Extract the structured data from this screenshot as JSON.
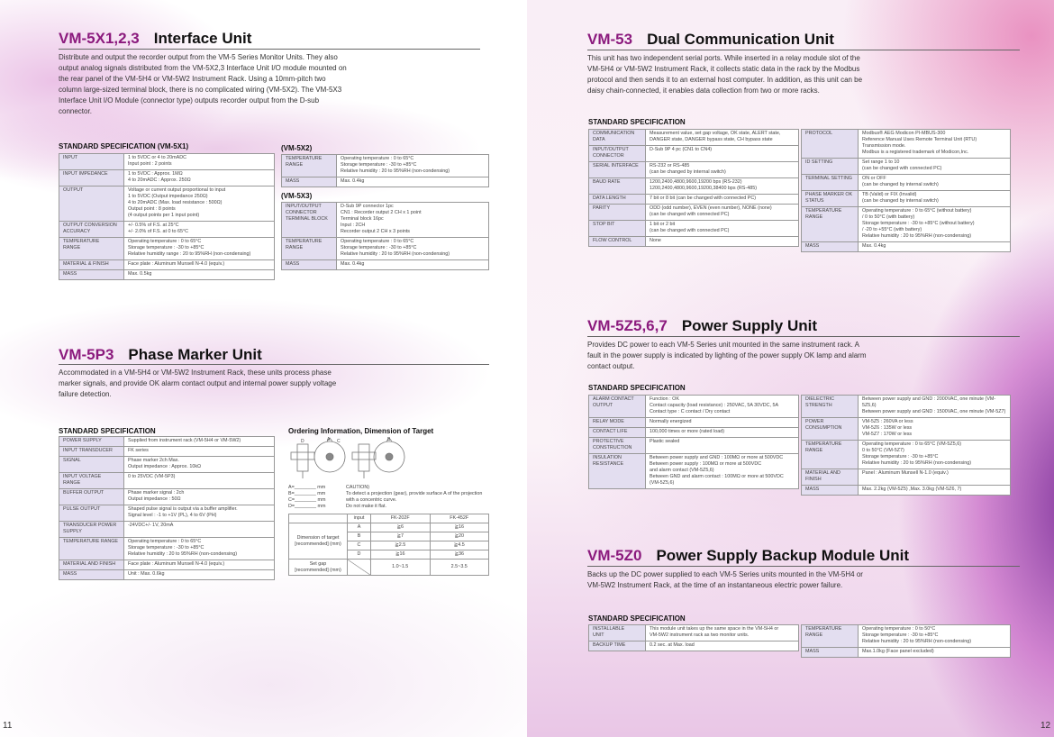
{
  "left_page": {
    "page_number": "11",
    "vm5x": {
      "model": "VM-5X1,2,3",
      "title": "Interface Unit",
      "description": "Distribute and output the recorder output from the VM-5 Series Monitor Units. They also output analog signals distributed from the VM-5X2,3 Interface Unit I/O module mounted on the rear panel of the VM-5H4 or VM-5W2 Instrument Rack. Using a 10mm-pitch two column large-sized terminal block, there is no complicated wiring (VM-5X2). The VM-5X3 Interface Unit I/O Module (connector type) outputs recorder output from the D-sub connector.",
      "spec_x1_heading": "STANDARD SPECIFICATION (VM-5X1)",
      "spec_x1": [
        [
          "INPUT",
          "1 to 5VDC or 4 to 20mADC\nInput point : 2 points"
        ],
        [
          "INPUT IMPEDANCE",
          "1 to 5VDC : Approx. 1MΩ\n4 to 20mADC : Approx. 250Ω"
        ],
        [
          "OUTPUT",
          "Voltage or current output proportional to input\n1 to 5VDC (Output impedance 250Ω)\n4 to 20mADC (Max. load resistance : 500Ω)\nOutput point : 8 points\n (4 output points per 1 input point)"
        ],
        [
          "OUTPUT CONVERSION\nACCURACY",
          "+/- 0.5% of F.S. at 25°C\n+/- 2.0% of F.S. at 0 to 65°C"
        ],
        [
          "TEMPERATURE\nRANGE",
          "Operating temperature : 0 to 65°C\nStorage temperature : -30 to +85°C\nRelative humidity range : 20 to 95%RH (non-condensing)"
        ],
        [
          "MATERIAL & FINISH",
          "Face plate : Aluminum Munsell N-4.0 (equiv.)"
        ],
        [
          "MASS",
          "Max. 0.5kg"
        ]
      ],
      "spec_x2_heading": "(VM-5X2)",
      "spec_x2": [
        [
          "TEMPERATURE\nRANGE",
          "Operating temperature : 0 to 65°C\nStorage temperature : -30 to +85°C\nRelative humidity : 20 to 95%RH (non-condensing)"
        ],
        [
          "MASS",
          "Max. 0.4kg"
        ]
      ],
      "spec_x3_heading": "(VM-5X3)",
      "spec_x3": [
        [
          "INPUT/OUTPUT\nCONNECTOR\nTERMINAL BLOCK",
          "D-Sub 9P connector 1pc\n            CN1 : Recorder output 2 CH x 1 point\nTerminal block 16pc\n          Input : 2CH\n          Recorder output 2 CH x 3 points\n "
        ],
        [
          "TEMPERATURE\nRANGE",
          "Operating temperature : 0 to 65°C\nStorage temperature : -30 to +85°C\nRelative humidity : 20 to 95%RH (non-condensing)"
        ],
        [
          "MASS",
          "Max. 0.4kg"
        ]
      ]
    },
    "vm5p3": {
      "model": "VM-5P3",
      "title": "Phase Marker Unit",
      "description": "Accommodated in a VM-5H4 or VM-5W2 Instrument Rack, these units process phase marker signals, and provide OK alarm contact output and internal power supply voltage failure detection.",
      "spec_heading": "STANDARD SPECIFICATION",
      "spec": [
        [
          "POWER SUPPLY",
          "Supplied from instrument rack (VM-5H4 or VM-5W2)"
        ],
        [
          "INPUT TRANSDUCER",
          "FK series"
        ],
        [
          "SIGNAL",
          "Phase marker 2ch Max.\nOutput impedance : Approx. 10kΩ"
        ],
        [
          "INPUT VOLTAGE\nRANGE",
          "0 to 25VDC (VM-5P3)"
        ],
        [
          "BUFFER OUTPUT",
          "Phase marker signal : 2ch\nOutput impedance : 50Ω"
        ],
        [
          "PULSE OUTPUT",
          "Shaped pulse signal is output via a buffer amplifier.\nSignal level : -1 to +1V (PL), 4 to 6V (PH)"
        ],
        [
          "TRANSDUCER POWER\nSUPPLY",
          "-24VDC+/- 1V, 20mA"
        ],
        [
          "TEMPERATURE RANGE",
          "Operating temperature : 0 to 65°C\nStorage temperature : -30 to +85°C\nRelative humidity : 20 to 95%RH (non-condensing)"
        ],
        [
          "MATERIAL AND FINISH",
          "Face plate : Aluminum Munsell N-4.0 (equiv.)"
        ],
        [
          "MASS",
          "Unit : Max. 0.6kg"
        ]
      ],
      "ordering": {
        "heading": "Ordering Information, Dimension of Target",
        "diagram_labels": [
          "A",
          "B",
          "C",
          "D"
        ],
        "fields": "A=________ mm\nB=________ mm\nC=________ mm\nD=________ mm",
        "caution": "CAUTION)\nTo detect a projection (gear), provide surface A of the projection\nwith a concentric curve.\nDo not make it flat.",
        "header": [
          "input",
          "FK-202F",
          "FK-452F"
        ],
        "dimension_label": "Dimension of target\n[recommended] (mm)",
        "rows": [
          [
            "A",
            "≧6",
            "≧16"
          ],
          [
            "B",
            "≧7",
            "≧20"
          ],
          [
            "C",
            "≧2.5",
            "≧4.5"
          ],
          [
            "D",
            "≧16",
            "≧36"
          ]
        ],
        "set_gap_label": "Set gap\n[recommended] (mm)",
        "set_gap": [
          "1.0~1.5",
          "2.5~3.5"
        ]
      }
    }
  },
  "right_page": {
    "page_number": "12",
    "vm53": {
      "model": "VM-53",
      "title": "Dual Communication Unit",
      "description": "This unit has two independent serial ports. While inserted in a relay module slot of the VM-5H4 or VM-5W2 Instrument Rack, it collects static data in the rack by the Modbus protocol and then sends it to an external host computer. In addition, as this unit can be daisy chain-connected, it enables data collection from two or more racks.",
      "spec_heading": "STANDARD SPECIFICATION",
      "spec_left": [
        [
          "COMMUNICATION\nDATA",
          "Measurement value, set gap voltage, OK state, ALERT state,\nDANGER state, DANGER bypass state, CH bypass state"
        ],
        [
          "INPUT/OUTPUT\nCONNECTOR",
          "D-Sub 9P 4 pc (CN1 to CN4)\n "
        ],
        [
          "SERIAL INTERFACE",
          "RS-232 or RS-485\n(can be changed by internal switch)"
        ],
        [
          "BAUD RATE",
          "1200,2400,4800,9600,19200 bps (RS-232)\n1200,2400,4800,9600,19200,38400 bps (RS-485)"
        ],
        [
          "DATA LENGTH",
          "7 bit or 8 bit (can be changed with connected PC)"
        ],
        [
          "PARITY",
          "ODD (odd number), EVEN (even number), NONE (none)\n(can be changed with connected PC)"
        ],
        [
          "STOP BIT",
          "1 bit or 2 bit\n(can be changed with connected PC)"
        ],
        [
          "FLOW CONTROL",
          "None"
        ]
      ],
      "spec_right": [
        [
          "PROTOCOL",
          "Modbus® AEG Modicon PI-MBUS-300\nReference Manual Uses Remote Terminal Unit (RTU)\nTransmission mode.\nModbus is a registered trademark of Modicon,Inc."
        ],
        [
          "ID SETTING",
          "Set range 1 to 10\n(can be changed with connected PC)"
        ],
        [
          "TERMINAL SETTING",
          "ON or OFF\n(can be changed by internal switch)"
        ],
        [
          "PHASE MARKER OK\nSTATUS",
          "TB (Valid) or FIX (Invalid)\n(can be changed by internal switch)"
        ],
        [
          "TEMPERATURE\nRANGE",
          "Operating temperature : 0 to 65°C (without battery)\n                    / 0 to 50°C (with battery)\nStorage temperature : -30 to +85°C (without battery)\n                    / -20 to +55°C (with battery)\nRelative humidity : 20 to 95%RH (non-condensing)"
        ],
        [
          "MASS",
          "Max. 0.4kg"
        ]
      ]
    },
    "vm5z5": {
      "model": "VM-5Z5,6,7",
      "title": "Power Supply Unit",
      "description": "Provides DC power to each VM-5 Series unit mounted in the same instrument rack. A fault in the power supply is indicated by lighting of the power supply OK lamp and alarm contact output.",
      "spec_heading": "STANDARD SPECIFICATION",
      "spec_left": [
        [
          "ALARM CONTACT\nOUTPUT",
          "Function : OK\nContact capacity (load resistance) : 250VAC, 5A 30VDC, 5A\nContact type : C contact / Dry contact"
        ],
        [
          "RELAY MODE",
          "Normally energized"
        ],
        [
          "CONTACT LIFE",
          "100,000 times or more (rated load)"
        ],
        [
          "PROTECTIVE\nCONSTRUCTION",
          "Plastic sealed"
        ],
        [
          "INSULATION\nRESISTANCE",
          "Between power supply and GND   : 100MΩ or more at 500VDC\nBetween power supply              : 100MΩ or more at 500VDC\n and alarm contact                     (VM-5Z5,6)\nBetween GND and alarm contact : 100MΩ or more at 500VDC\n                                                (VM-5Z5,6)"
        ]
      ],
      "spec_right": [
        [
          "DIELECTRIC\nSTRENGTH",
          "Between power supply and GND : 2000VAC, one minute (VM-5Z5,6)\nBetween power supply and GND : 1500VAC, one minute (VM-5Z7)"
        ],
        [
          "POWER\nCONSUMPTION",
          "VM-5Z5 : 260VA or less\nVM-5Z6 : 135W or less\nVM-5Z7 : 170W or less"
        ],
        [
          "TEMPERATURE\nRANGE",
          "Operating temperature : 0 to 65°C (VM-5Z5,6)\n                              0 to 50°C (VM-5Z7)\nStorage temperature : -30 to +85°C\nRelative humidity : 20 to 95%RH (non-condensing)"
        ],
        [
          "MATERIAL AND\nFINISH",
          "Panel : Aluminum Munsell N-1.0 (equiv.)"
        ],
        [
          "MASS",
          "Max. 2.2kg (VM-5Z5) ,Max. 3.0kg (VM-5Z6, 7)"
        ]
      ]
    },
    "vm5z0": {
      "model": "VM-5Z0",
      "title": "Power Supply Backup Module Unit",
      "description": "Backs up the DC power supplied to each VM-5 Series units mounted in the VM-5H4 or VM-5W2 Instrument Rack, at the time of an instantaneous electric power failure.",
      "spec_heading": "STANDARD SPECIFICATION",
      "spec_left": [
        [
          "INSTALLABLE\nUNIT",
          "This module unit takes up the same space in the VM-5H4 or\nVM-5W2 instrument rack as two monitor units."
        ],
        [
          "BACKUP TIME",
          "0.2 sec. at Max. load"
        ]
      ],
      "spec_right": [
        [
          "TEMPERATURE\nRANGE",
          "Operating temperature : 0 to 50°C\nStorage temperature : -30 to +85°C\nRelative humidity : 20 to 95%RH (non-condensing)"
        ],
        [
          "MASS",
          "Max.1.0kg (Face panel excluded)"
        ]
      ]
    }
  }
}
